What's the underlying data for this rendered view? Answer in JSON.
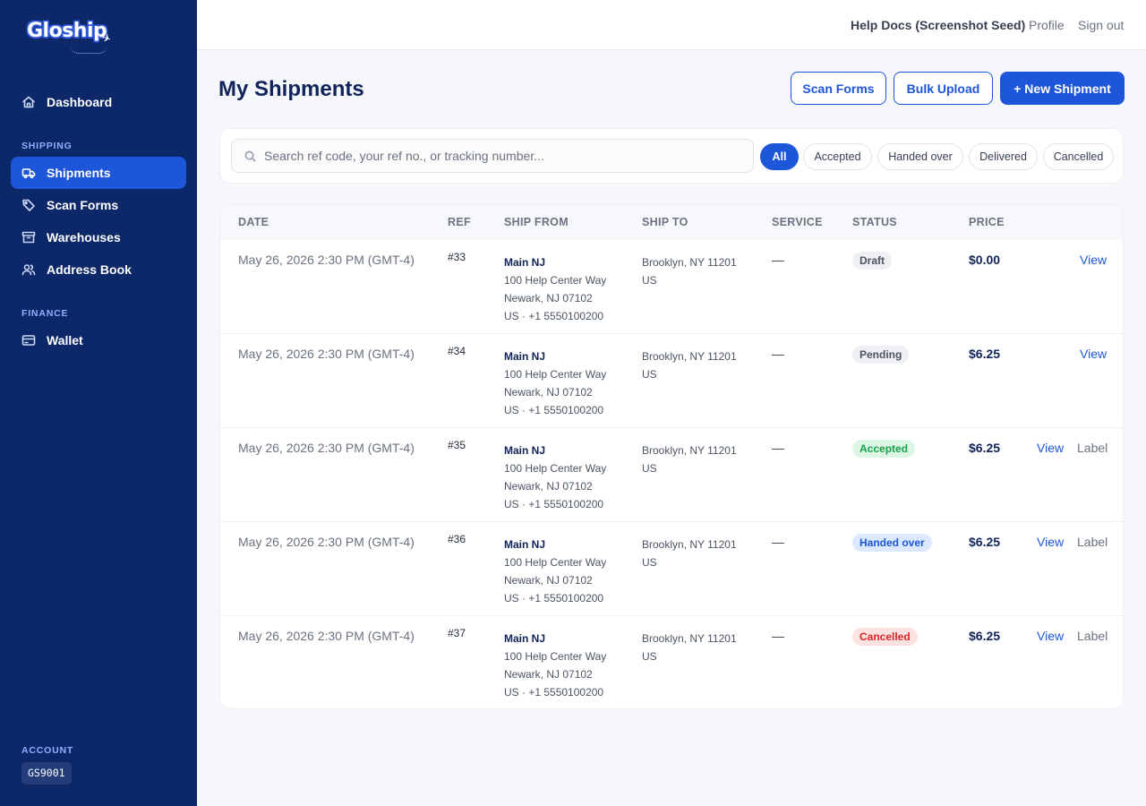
{
  "brand": {
    "name": "Gloship"
  },
  "sidebar": {
    "dashboard": "Dashboard",
    "shipping_section": "SHIPPING",
    "shipping_items": [
      "Shipments",
      "Scan Forms",
      "Warehouses",
      "Address Book"
    ],
    "finance_section": "FINANCE",
    "finance_items": [
      "Wallet"
    ],
    "account_section": "ACCOUNT",
    "account_code": "GS9001"
  },
  "topbar": {
    "help": "Help Docs (Screenshot Seed)",
    "profile": "Profile",
    "signout": "Sign out"
  },
  "page": {
    "title": "My Shipments",
    "buttons": {
      "scan_forms": "Scan Forms",
      "bulk_upload": "Bulk Upload",
      "new_shipment": "+ New Shipment"
    }
  },
  "search": {
    "placeholder": "Search ref code, your ref no., or tracking number..."
  },
  "filters": [
    "All",
    "Accepted",
    "Handed over",
    "Delivered",
    "Cancelled"
  ],
  "table": {
    "columns": [
      "DATE",
      "REF",
      "SHIP FROM",
      "SHIP TO",
      "SERVICE",
      "STATUS",
      "PRICE"
    ],
    "rows": [
      {
        "date": "May 26, 2026 2:30 PM (GMT-4)",
        "ref": "#33",
        "from_name": "Main NJ",
        "from_l1": "100 Help Center Way",
        "from_l2": "Newark, NJ 07102",
        "from_l3": "US · +1 5550100200",
        "to_l1": "Brooklyn, NY 11201",
        "to_l2": "US",
        "service": "—",
        "status": "Draft",
        "price": "$0.00",
        "view": "View",
        "label": ""
      },
      {
        "date": "May 26, 2026 2:30 PM (GMT-4)",
        "ref": "#34",
        "from_name": "Main NJ",
        "from_l1": "100 Help Center Way",
        "from_l2": "Newark, NJ 07102",
        "from_l3": "US · +1 5550100200",
        "to_l1": "Brooklyn, NY 11201",
        "to_l2": "US",
        "service": "—",
        "status": "Pending",
        "price": "$6.25",
        "view": "View",
        "label": ""
      },
      {
        "date": "May 26, 2026 2:30 PM (GMT-4)",
        "ref": "#35",
        "from_name": "Main NJ",
        "from_l1": "100 Help Center Way",
        "from_l2": "Newark, NJ 07102",
        "from_l3": "US · +1 5550100200",
        "to_l1": "Brooklyn, NY 11201",
        "to_l2": "US",
        "service": "—",
        "status": "Accepted",
        "price": "$6.25",
        "view": "View",
        "label": "Label"
      },
      {
        "date": "May 26, 2026 2:30 PM (GMT-4)",
        "ref": "#36",
        "from_name": "Main NJ",
        "from_l1": "100 Help Center Way",
        "from_l2": "Newark, NJ 07102",
        "from_l3": "US · +1 5550100200",
        "to_l1": "Brooklyn, NY 11201",
        "to_l2": "US",
        "service": "—",
        "status": "Handed over",
        "price": "$6.25",
        "view": "View",
        "label": "Label"
      },
      {
        "date": "May 26, 2026 2:30 PM (GMT-4)",
        "ref": "#37",
        "from_name": "Main NJ",
        "from_l1": "100 Help Center Way",
        "from_l2": "Newark, NJ 07102",
        "from_l3": "US · +1 5550100200",
        "to_l1": "Brooklyn, NY 11201",
        "to_l2": "US",
        "service": "—",
        "status": "Cancelled",
        "price": "$6.25",
        "view": "View",
        "label": "Label"
      }
    ]
  },
  "colors": {
    "sidebar_bg": "#0d2869",
    "accent": "#1e56d9",
    "status": {
      "Draft": {
        "bg": "#eef0f3",
        "fg": "#4b5563"
      },
      "Pending": {
        "bg": "#eef0f3",
        "fg": "#4b5563"
      },
      "Accepted": {
        "bg": "#dcf5e4",
        "fg": "#16a34a"
      },
      "Handed over": {
        "bg": "#dce8fd",
        "fg": "#1e56d9"
      },
      "Cancelled": {
        "bg": "#fde2e2",
        "fg": "#dc2626"
      }
    }
  }
}
